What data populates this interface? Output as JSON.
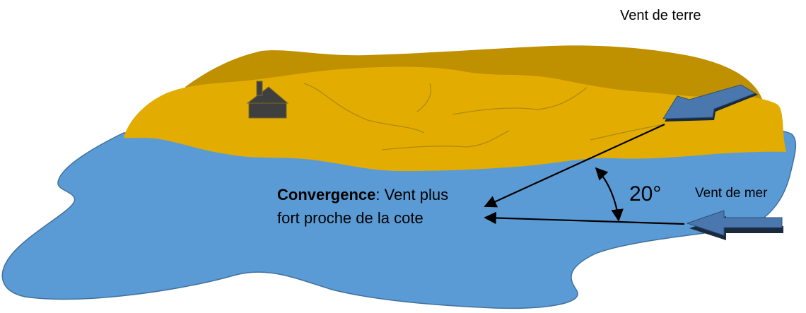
{
  "labels": {
    "land_wind": "Vent de terre",
    "sea_wind": "Vent de mer",
    "angle": "20°",
    "convergence_bold": "Convergence",
    "convergence_rest_line1": ": Vent plus",
    "convergence_line2": "fort proche de la cote"
  },
  "colors": {
    "sea": "#5B9BD5",
    "sea_outline": "#41719C",
    "land_back": "#BF9000",
    "land_front": "#E2AC00",
    "terrain_lines": "#B08A10",
    "wind_arrow": "#4A78AE",
    "wind_arrow_edge": "#1A2A3E",
    "house": "#3F3F3F"
  },
  "icons": {
    "house": "house-icon",
    "land_wind_arrow": "wind-arrow-icon",
    "sea_wind_arrow": "wind-arrow-icon"
  }
}
